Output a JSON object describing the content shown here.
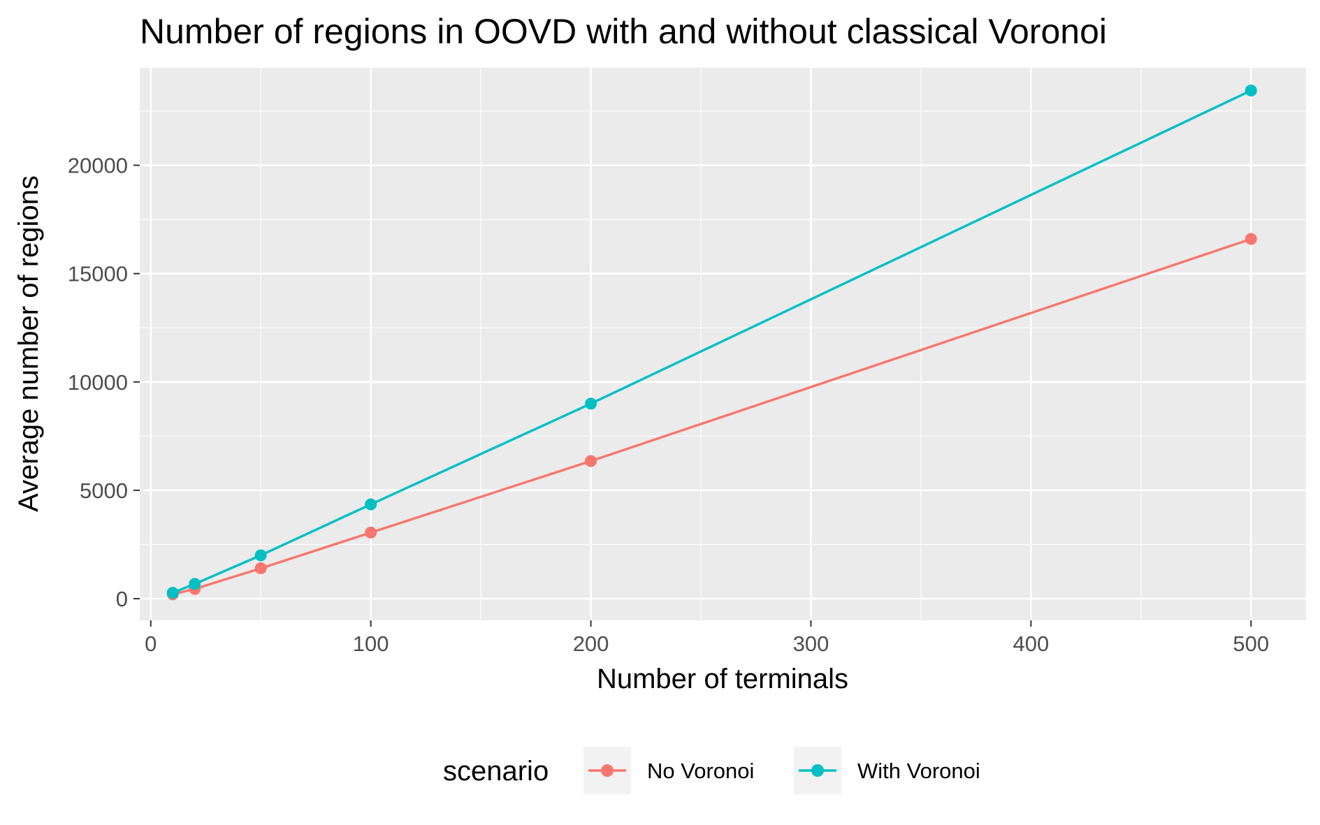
{
  "chart_data": {
    "type": "line",
    "title": "Number of regions in OOVD with and without classical Voronoi",
    "xlabel": "Number of terminals",
    "ylabel": "Average number of regions",
    "x": [
      10,
      20,
      50,
      100,
      200,
      500
    ],
    "xlim": [
      -5,
      525
    ],
    "ylim": [
      -1000,
      24500
    ],
    "x_ticks": [
      0,
      100,
      200,
      300,
      400,
      500
    ],
    "y_ticks": [
      0,
      5000,
      10000,
      15000,
      20000
    ],
    "series": [
      {
        "name": "No Voronoi",
        "color": "#F8766D",
        "values": [
          200,
          450,
          1400,
          3050,
          6350,
          16600
        ]
      },
      {
        "name": "With Voronoi",
        "color": "#00BFC4",
        "values": [
          270,
          680,
          2000,
          4350,
          9000,
          23450
        ]
      }
    ],
    "grid": true,
    "legend": {
      "title": "scenario",
      "position": "bottom"
    },
    "panel_background": "#EBEBEB"
  }
}
